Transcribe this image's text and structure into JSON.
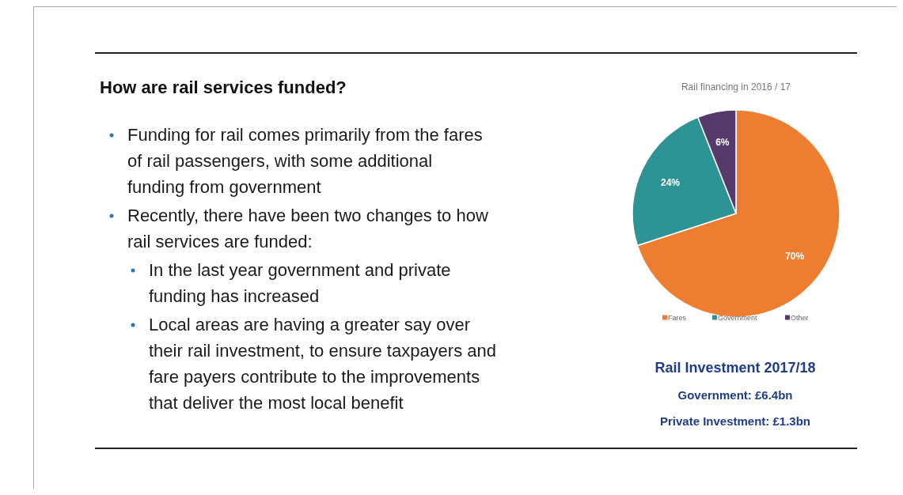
{
  "chart_data": [
    {
      "type": "other",
      "title": "How are rail services funded?",
      "annotations": [
        "Funding for rail comes primarily from the fares of rail passengers, with some additional funding from government",
        "Recently, there have been two changes to how rail services are funded:",
        "In the last year government and private funding has increased",
        "Local areas are having a greater say over their rail investment, to ensure taxpayers and fare payers contribute to the improvements that deliver the most local benefit"
      ]
    },
    {
      "type": "pie",
      "title": "Rail financing in 2016 / 17",
      "categories": [
        "Fares",
        "Government",
        "Other"
      ],
      "values": [
        70,
        24,
        6
      ],
      "colors": [
        "#ed7d31",
        "#2e9395",
        "#553a6b"
      ],
      "value_labels": [
        "70%",
        "24%",
        "6%"
      ],
      "legend": "bottom"
    },
    {
      "type": "other",
      "title": "Rail Investment 2017/18",
      "annotations": [
        "Government: £6.4bn",
        "Private Investment: £1.3bn"
      ]
    }
  ]
}
